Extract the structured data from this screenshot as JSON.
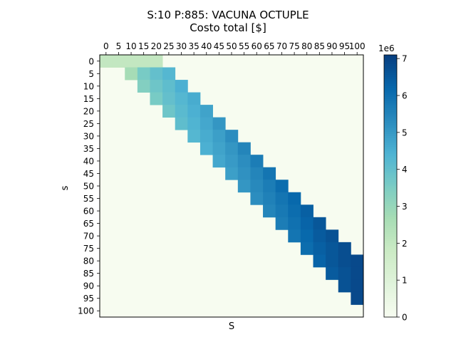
{
  "chart_data": {
    "type": "heatmap",
    "title": "S:10 P:885: VACUNA OCTUPLE",
    "subtitle": "Costo total [$]",
    "xlabel": "S",
    "ylabel": "s",
    "x_ticks": [
      0,
      5,
      10,
      15,
      20,
      25,
      30,
      35,
      40,
      45,
      50,
      55,
      60,
      65,
      70,
      75,
      80,
      85,
      90,
      95,
      100
    ],
    "y_ticks": [
      0,
      5,
      10,
      15,
      20,
      25,
      30,
      35,
      40,
      45,
      50,
      55,
      60,
      65,
      70,
      75,
      80,
      85,
      90,
      95,
      100
    ],
    "colorbar": {
      "multiplier_label": "1e6",
      "ticks": [
        0,
        1,
        2,
        3,
        4,
        5,
        6,
        7
      ],
      "range": [
        0,
        7.1
      ],
      "colormap": "GnBu"
    },
    "cell_step": 5,
    "grid": false,
    "value_units": "millions of $ (×1e6)",
    "cells_rule": "Filled where 0 < S - s <= 20 (S and s in steps of 5); value grows with s and S. Row s=0 has S=0..20; all other cells are 0.",
    "rows": [
      {
        "s": 0,
        "S": [
          0,
          5,
          10,
          15,
          20
        ],
        "values": [
          2.0,
          2.0,
          2.0,
          2.0,
          2.0
        ]
      },
      {
        "s": 5,
        "S": [
          10,
          15,
          20,
          25
        ],
        "values": [
          2.7,
          3.6,
          4.0,
          4.3
        ]
      },
      {
        "s": 10,
        "S": [
          15,
          20,
          25,
          30
        ],
        "values": [
          3.4,
          3.8,
          4.1,
          4.5
        ]
      },
      {
        "s": 15,
        "S": [
          20,
          25,
          30,
          35
        ],
        "values": [
          3.6,
          4.0,
          4.3,
          4.6
        ]
      },
      {
        "s": 20,
        "S": [
          25,
          30,
          35,
          40
        ],
        "values": [
          3.8,
          4.2,
          4.5,
          4.8
        ]
      },
      {
        "s": 25,
        "S": [
          30,
          35,
          40,
          45
        ],
        "values": [
          4.1,
          4.4,
          4.7,
          5.1
        ]
      },
      {
        "s": 30,
        "S": [
          35,
          40,
          45,
          50
        ],
        "values": [
          4.3,
          4.6,
          4.9,
          5.3
        ]
      },
      {
        "s": 35,
        "S": [
          40,
          45,
          50,
          55
        ],
        "values": [
          4.5,
          4.8,
          5.1,
          5.5
        ]
      },
      {
        "s": 40,
        "S": [
          45,
          50,
          55,
          60
        ],
        "values": [
          4.7,
          5.0,
          5.3,
          5.7
        ]
      },
      {
        "s": 45,
        "S": [
          50,
          55,
          60,
          65
        ],
        "values": [
          4.9,
          5.2,
          5.5,
          5.9
        ]
      },
      {
        "s": 50,
        "S": [
          55,
          60,
          65,
          70
        ],
        "values": [
          5.1,
          5.4,
          5.7,
          6.1
        ]
      },
      {
        "s": 55,
        "S": [
          60,
          65,
          70,
          75
        ],
        "values": [
          5.3,
          5.6,
          5.9,
          6.2
        ]
      },
      {
        "s": 60,
        "S": [
          65,
          70,
          75,
          80
        ],
        "values": [
          5.5,
          5.8,
          6.1,
          6.4
        ]
      },
      {
        "s": 65,
        "S": [
          70,
          75,
          80,
          85
        ],
        "values": [
          5.7,
          6.0,
          6.3,
          6.6
        ]
      },
      {
        "s": 70,
        "S": [
          75,
          80,
          85,
          90
        ],
        "values": [
          5.9,
          6.2,
          6.5,
          6.7
        ]
      },
      {
        "s": 75,
        "S": [
          80,
          85,
          90,
          95
        ],
        "values": [
          6.1,
          6.4,
          6.6,
          6.8
        ]
      },
      {
        "s": 80,
        "S": [
          85,
          90,
          95,
          100
        ],
        "values": [
          6.3,
          6.6,
          6.8,
          6.9
        ]
      },
      {
        "s": 85,
        "S": [
          90,
          95,
          100
        ],
        "values": [
          6.5,
          6.7,
          6.9
        ]
      },
      {
        "s": 90,
        "S": [
          95,
          100
        ],
        "values": [
          6.7,
          6.9
        ]
      },
      {
        "s": 95,
        "S": [
          100
        ],
        "values": [
          6.9
        ]
      },
      {
        "s": 100,
        "S": [],
        "values": []
      }
    ]
  }
}
